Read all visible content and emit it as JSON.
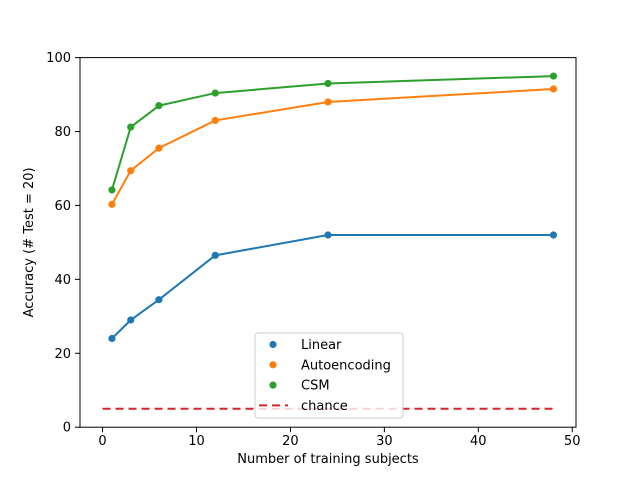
{
  "chart_data": {
    "type": "line",
    "title": "",
    "xlabel": "Number of training subjects",
    "ylabel": "Accuracy (# Test = 20)",
    "x": [
      1,
      3,
      6,
      12,
      24,
      48
    ],
    "series": [
      {
        "name": "Linear",
        "color": "#1f77b4",
        "values": [
          24,
          29,
          34.5,
          46.5,
          52,
          52
        ]
      },
      {
        "name": "Autoencoding",
        "color": "#ff7f0e",
        "values": [
          60.3,
          69.4,
          75.5,
          83,
          88,
          91.5
        ]
      },
      {
        "name": "CSM",
        "color": "#2ca02c",
        "values": [
          64.2,
          81.2,
          87,
          90.4,
          93,
          95
        ]
      }
    ],
    "reference_line": {
      "label": "chance",
      "color": "#d62728",
      "style": "dashed",
      "y": 5,
      "x_start": 0,
      "x_end": 48
    },
    "xlim": [
      -2.4,
      50.4
    ],
    "ylim": [
      0,
      100
    ],
    "xticks": [
      0,
      10,
      20,
      30,
      40,
      50
    ],
    "yticks": [
      0,
      20,
      40,
      60,
      80,
      100
    ],
    "grid": false,
    "legend": {
      "position": "lower center",
      "entries": [
        {
          "label": "Linear",
          "color": "#1f77b4",
          "marker": "dot"
        },
        {
          "label": "Autoencoding",
          "color": "#ff7f0e",
          "marker": "dot"
        },
        {
          "label": "CSM",
          "color": "#2ca02c",
          "marker": "dot"
        },
        {
          "label": "chance",
          "color": "#d62728",
          "marker": "dashed-line"
        }
      ]
    }
  }
}
